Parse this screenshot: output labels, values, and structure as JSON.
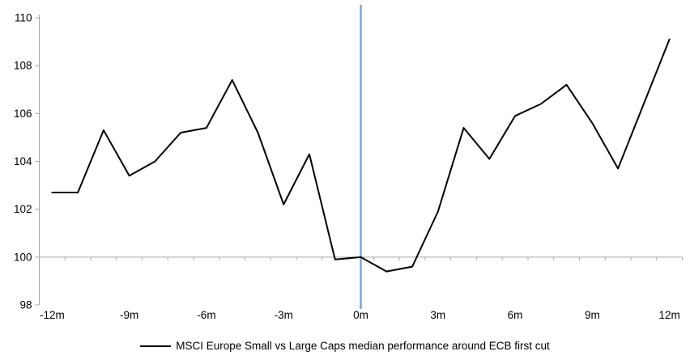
{
  "chart_data": {
    "type": "line",
    "title": "",
    "xlabel": "",
    "ylabel": "",
    "x_unit": "months relative to ECB first rate cut",
    "x_months": [
      -12,
      -11,
      -10,
      -9,
      -8,
      -7,
      -6,
      -5,
      -4,
      -3,
      -2,
      -1,
      0,
      1,
      2,
      3,
      4,
      5,
      6,
      7,
      8,
      9,
      10,
      11,
      12
    ],
    "series": [
      {
        "name": "MSCI Europe Small vs Large Caps median performance around ECB first cut",
        "color": "#000000",
        "values": [
          102.7,
          102.7,
          105.3,
          103.4,
          104.0,
          105.2,
          105.4,
          107.4,
          105.2,
          102.2,
          104.3,
          99.9,
          100.0,
          99.4,
          99.6,
          101.9,
          105.4,
          104.1,
          105.9,
          106.4,
          107.2,
          105.6,
          103.7,
          106.4,
          109.1
        ]
      }
    ],
    "x_tick_labels": [
      "-12m",
      "-9m",
      "-6m",
      "-3m",
      "0m",
      "3m",
      "6m",
      "9m",
      "12m"
    ],
    "x_label_every_months": 3,
    "y_tick_labels": [
      "98",
      "100",
      "102",
      "104",
      "106",
      "108",
      "110"
    ],
    "ylim": [
      98,
      110
    ],
    "ytick_step": 2,
    "axis_crosses_at": 100,
    "event_line_at_month": 0,
    "grid": false,
    "legend_position": "bottom"
  },
  "legend": {
    "label": "MSCI Europe Small vs Large Caps median performance around ECB first cut"
  },
  "colors": {
    "background": "#ffffff",
    "axis": "#a6a6a6",
    "series_line": "#000000",
    "event_line": "#7ca6d2",
    "text": "#000000"
  }
}
